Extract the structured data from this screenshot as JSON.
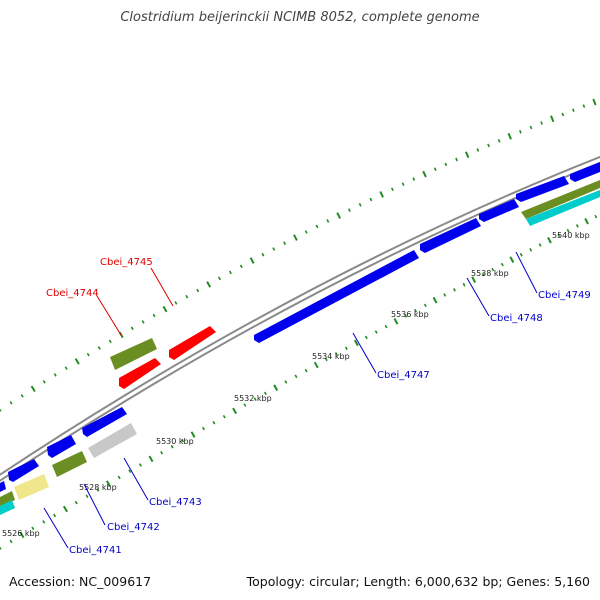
{
  "title": "Clostridium beijerinckii NCIMB 8052, complete genome",
  "footer": {
    "accession": "Accession: NC_009617",
    "summary": "Topology: circular; Length: 6,000,632 bp; Genes: 5,160"
  },
  "colors": {
    "backbone": "#8a8a8a",
    "forward_gene": "#0000ee",
    "reverse_gene": "#0000ee",
    "rrna": "#ff0000",
    "olive_track": "#6b8e23",
    "grey_track": "#c8c8c8",
    "yellow_track": "#f0e68c",
    "cyan_track": "#00cccc",
    "tick": "#228b22",
    "label_blue": "#0000cc",
    "label_red": "#dd0000"
  },
  "kbp_ticks": [
    "5526 kbp",
    "5528 kbp",
    "5530 kbp",
    "5532 kbp",
    "5534 kbp",
    "5536 kbp",
    "5538 kbp",
    "5540 kbp"
  ],
  "gene_labels": [
    {
      "id": "g4741",
      "text": "Cbei_4741",
      "color": "blue"
    },
    {
      "id": "g4742",
      "text": "Cbei_4742",
      "color": "blue"
    },
    {
      "id": "g4743",
      "text": "Cbei_4743",
      "color": "blue"
    },
    {
      "id": "g4744",
      "text": "Cbei_4744",
      "color": "red"
    },
    {
      "id": "g4745",
      "text": "Cbei_4745",
      "color": "red"
    },
    {
      "id": "g4747",
      "text": "Cbei_4747",
      "color": "blue"
    },
    {
      "id": "g4748",
      "text": "Cbei_4748",
      "color": "blue"
    },
    {
      "id": "g4749",
      "text": "Cbei_4749",
      "color": "blue"
    }
  ]
}
